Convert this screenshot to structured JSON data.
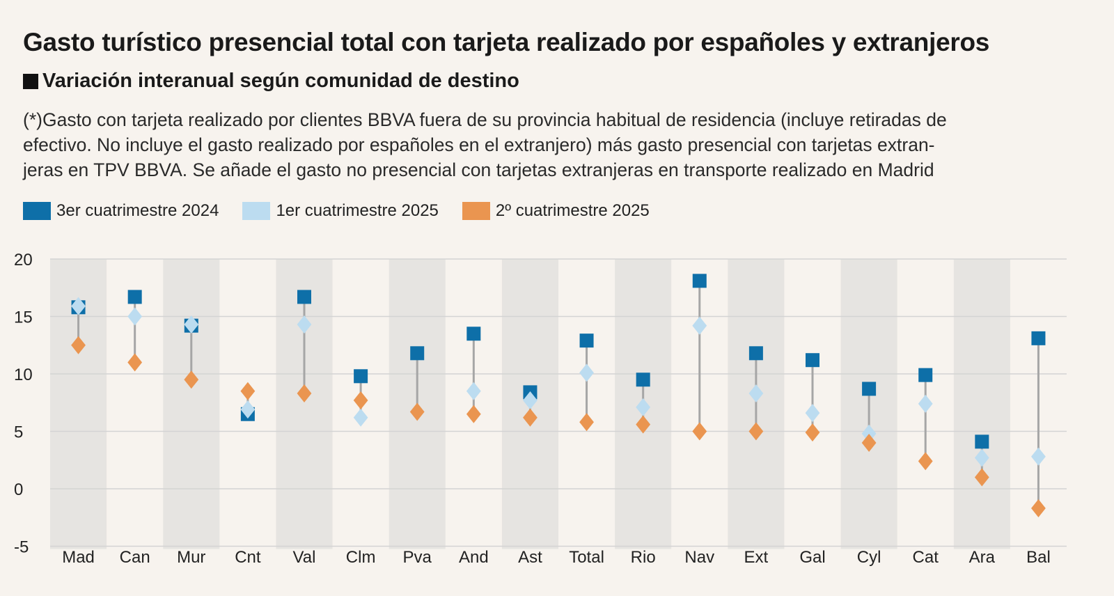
{
  "title": "Gasto turístico presencial total con tarjeta realizado por españoles y extranjeros",
  "subtitle": "Variación interanual según comunidad de destino",
  "note_lines": [
    "(*)Gasto con tarjeta realizado por clientes BBVA fuera de su provincia habitual de residencia (incluye retiradas de",
    "efectivo. No incluye el gasto realizado por españoles en el extranjero) más gasto presencial con tarjetas extran-",
    "jeras en TPV BBVA. Se añade el gasto no presencial con tarjetas extranjeras en transporte realizado en Madrid"
  ],
  "chart_data": {
    "type": "scatter",
    "categories": [
      "Mad",
      "Can",
      "Mur",
      "Cnt",
      "Val",
      "Clm",
      "Pva",
      "And",
      "Ast",
      "Total",
      "Rio",
      "Nav",
      "Ext",
      "Gal",
      "Cyl",
      "Cat",
      "Ara",
      "Bal"
    ],
    "series": [
      {
        "name": "3er cuatrimestre 2024",
        "color": "#0e6fa8",
        "marker": "square",
        "values": [
          15.8,
          16.7,
          14.2,
          6.5,
          16.7,
          9.8,
          11.8,
          13.5,
          8.4,
          12.9,
          9.5,
          18.1,
          11.8,
          11.2,
          8.7,
          9.9,
          4.1,
          13.1
        ]
      },
      {
        "name": "1er cuatrimestre 2025",
        "color": "#bcdcf0",
        "marker": "diamond",
        "values": [
          15.9,
          15.0,
          14.3,
          6.9,
          14.3,
          6.2,
          null,
          8.5,
          7.7,
          10.1,
          7.1,
          14.2,
          8.3,
          6.6,
          4.8,
          7.4,
          2.7,
          2.8
        ]
      },
      {
        "name": "2º cuatrimestre 2025",
        "color": "#ea9550",
        "marker": "diamond",
        "values": [
          12.5,
          11.0,
          9.5,
          8.5,
          8.3,
          7.7,
          6.7,
          6.5,
          6.2,
          5.8,
          5.6,
          5.0,
          5.0,
          4.9,
          4.0,
          2.4,
          1.0,
          -1.7
        ]
      }
    ],
    "yticks": [
      20,
      15,
      10,
      5,
      0,
      -5
    ],
    "ylim": [
      -5,
      20
    ],
    "xlabel": "",
    "ylabel": ""
  }
}
